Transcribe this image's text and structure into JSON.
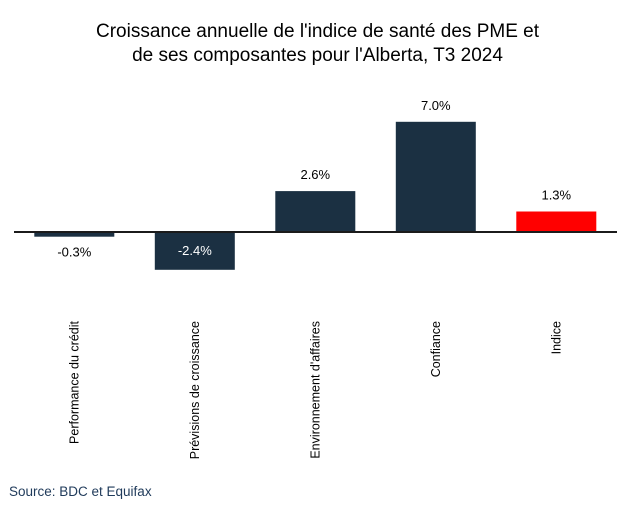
{
  "chart_data": {
    "type": "bar",
    "title": [
      "Croissance annuelle de l'indice de santé des PME et",
      "de ses composantes pour l'Alberta, T3 2024"
    ],
    "categories": [
      "Performance du crédit",
      "Prévisions de croissance",
      "Environnement d'affaires",
      "Confiance",
      "Indice"
    ],
    "values": [
      -0.3,
      -2.4,
      2.6,
      7.0,
      1.3
    ],
    "value_labels": [
      "-0.3%",
      "-2.4%",
      "2.6%",
      "7.0%",
      "1.3%"
    ],
    "bar_colors": [
      "#1b3042",
      "#1b3042",
      "#1b3042",
      "#1b3042",
      "#ff0000"
    ],
    "label_inside_bar": [
      false,
      true,
      false,
      false,
      false
    ],
    "xlabel": "",
    "ylabel": "",
    "ylim": [
      -2.4,
      7.0
    ],
    "grid": false,
    "legend": "none"
  },
  "source": "Source: BDC et Equifax",
  "colors": {
    "axis": "#1b1b1b",
    "label_dark": "#000000",
    "label_light": "#ffffff"
  }
}
